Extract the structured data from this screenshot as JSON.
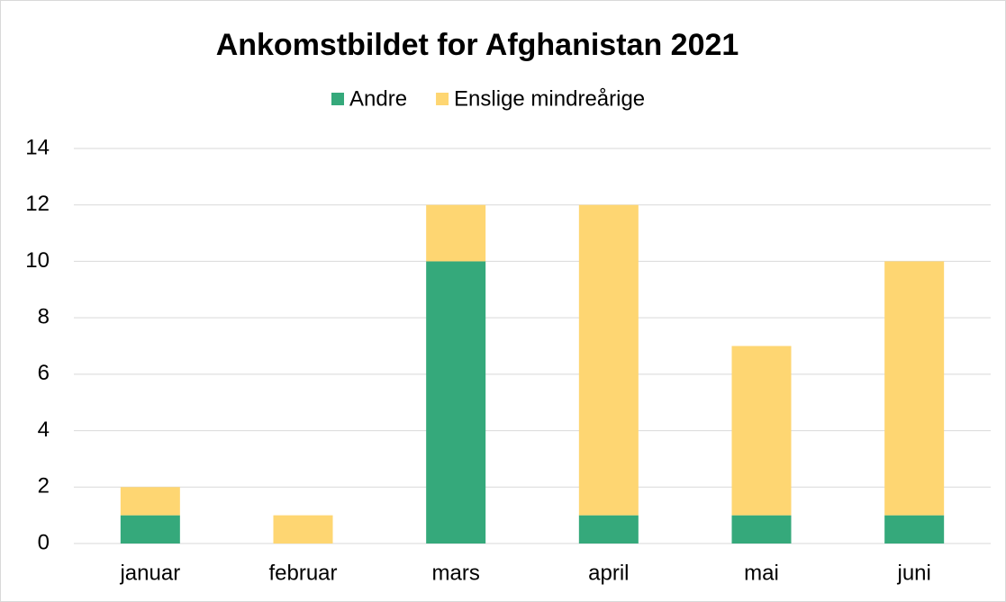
{
  "chart_data": {
    "type": "stacked_bar",
    "title": "Ankomstbildet for Afghanistan 2021",
    "categories": [
      "januar",
      "februar",
      "mars",
      "april",
      "mai",
      "juni"
    ],
    "series": [
      {
        "name": "Andre",
        "color": "#35a97b",
        "values": [
          1,
          0,
          10,
          1,
          1,
          1
        ]
      },
      {
        "name": "Enslige mindreårige",
        "color": "#fed672",
        "values": [
          1,
          1,
          2,
          11,
          6,
          9
        ]
      }
    ],
    "ylim": [
      0,
      14
    ],
    "yticks": [
      0,
      2,
      4,
      6,
      8,
      10,
      12,
      14
    ],
    "grid": true,
    "legend": "top"
  }
}
